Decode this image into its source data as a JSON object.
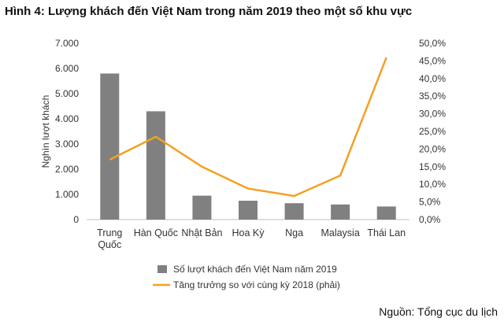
{
  "title": "Hình 4: Lượng khách đến Việt Nam trong năm 2019 theo một số khu vực",
  "source": "Nguồn: Tổng cục du lịch",
  "chart_data": {
    "type": "bar",
    "categories": [
      [
        "Trung",
        "Quốc"
      ],
      [
        "Hàn Quốc"
      ],
      [
        "Nhật Bản"
      ],
      [
        "Hoa Kỳ"
      ],
      [
        "Nga"
      ],
      [
        "Malaysia"
      ],
      [
        "Thái Lan"
      ]
    ],
    "ylabel": "Nghìn lượt khách",
    "ylim": [
      0,
      7000
    ],
    "yticks": [
      "0",
      "1.000",
      "2.000",
      "3.000",
      "4.000",
      "5.000",
      "6.000",
      "7.000"
    ],
    "y2lim": [
      0,
      50
    ],
    "y2ticks": [
      "0,0%",
      "5,0%",
      "10,0%",
      "15,0%",
      "20,0%",
      "25,0%",
      "30,0%",
      "35,0%",
      "40,0%",
      "45,0%",
      "50,0%"
    ],
    "series": [
      {
        "name": "Số lượt khách đến Việt Nam năm 2019",
        "type": "bar",
        "axis": "left",
        "color": "#808080",
        "values": [
          5800,
          4300,
          950,
          750,
          650,
          600,
          520
        ]
      },
      {
        "name": "Tăng trưởng so với cùng kỳ 2018 (phải)",
        "type": "line",
        "axis": "right",
        "color": "#f4a024",
        "values": [
          17,
          23.5,
          15,
          8.8,
          6.7,
          12.5,
          46
        ]
      }
    ],
    "legend": "bottom",
    "grid": false
  }
}
